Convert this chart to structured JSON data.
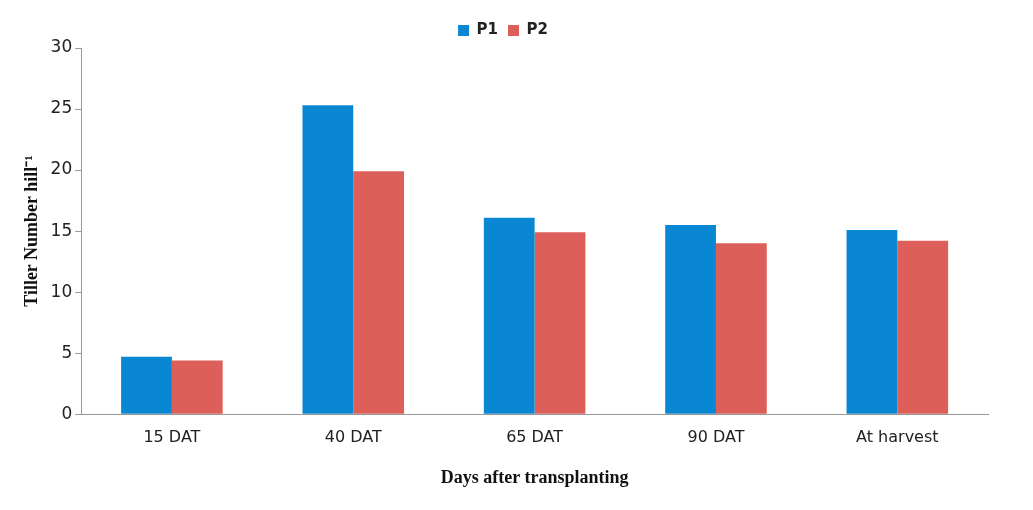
{
  "chart_data": {
    "type": "bar",
    "xlabel": "Days after transplanting",
    "ylabel": "Tiller Number hill⁻¹",
    "categories": [
      "15 DAT",
      "40 DAT",
      "65 DAT",
      "90 DAT",
      "At harvest"
    ],
    "series": [
      {
        "name": "P1",
        "color": "#0a87d2",
        "values": [
          4.7,
          25.3,
          16.1,
          15.5,
          15.1
        ]
      },
      {
        "name": "P2",
        "color": "#dc5f5a",
        "values": [
          4.4,
          19.9,
          14.9,
          14.0,
          14.2
        ]
      }
    ],
    "ylim": [
      0,
      30
    ],
    "yticks": [
      0,
      5,
      10,
      15,
      20,
      25,
      30
    ],
    "grid": false,
    "legend": "top"
  }
}
